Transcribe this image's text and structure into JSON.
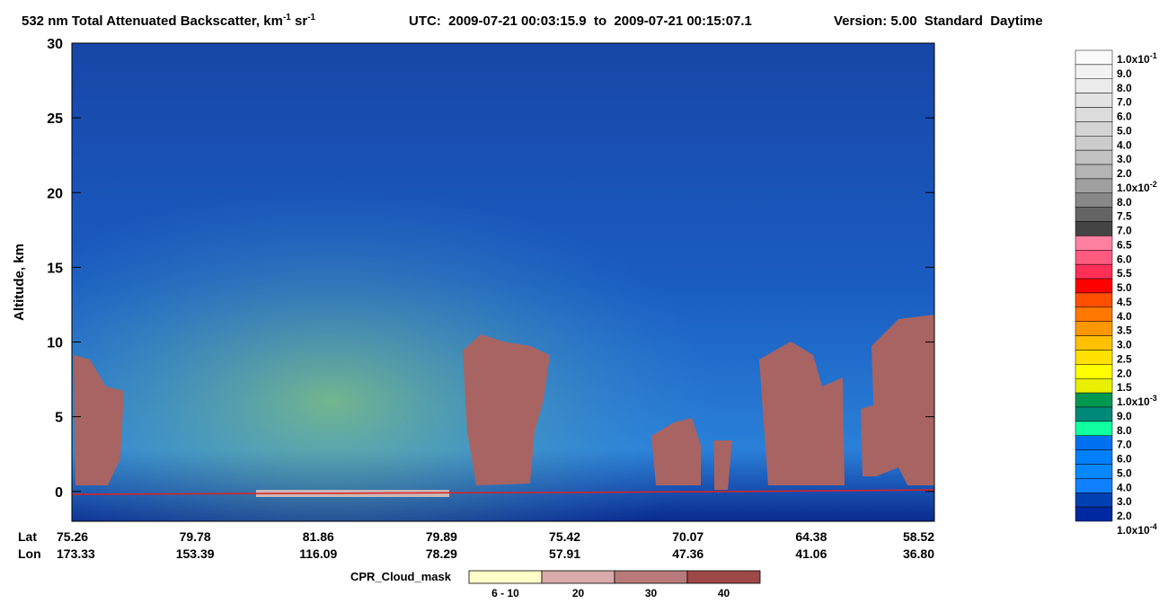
{
  "chart_data": {
    "type": "curtain",
    "title_parts": [
      "532 nm Total Attenuated Backscatter, km",
      "-1",
      " sr",
      "-1"
    ],
    "time_range": "UTC:  2009-07-21 00:03:15.9  to  2009-07-21 00:15:07.1",
    "version": "Version: 5.00  Standard  Daytime",
    "ylabel": "Altitude, km",
    "ylim": [
      -2,
      30
    ],
    "yticks": [
      0,
      5,
      10,
      15,
      20,
      25,
      30
    ],
    "lat_label": "Lat",
    "lon_label": "Lon",
    "lat": [
      "75.26",
      "79.78",
      "81.86",
      "79.89",
      "75.42",
      "70.07",
      "64.38",
      "58.52"
    ],
    "lon": [
      "173.33",
      "153.39",
      "116.09",
      "78.29",
      "57.91",
      "47.36",
      "41.06",
      "36.80"
    ],
    "colorbar": {
      "labels": [
        {
          "base": "1.0x10",
          "exp": "-1"
        },
        "9.0",
        "8.0",
        "7.0",
        "6.0",
        "5.0",
        "4.0",
        "3.0",
        "2.0",
        {
          "base": "1.0x10",
          "exp": "-2"
        },
        "8.0",
        "7.5",
        "7.0",
        "6.5",
        "6.0",
        "5.5",
        "5.0",
        "4.5",
        "4.0",
        "3.5",
        "3.0",
        "2.5",
        "2.0",
        "1.5",
        {
          "base": "1.0x10",
          "exp": "-3"
        },
        "9.0",
        "8.0",
        "7.0",
        "6.0",
        "5.0",
        "4.0",
        "3.0",
        "2.0",
        {
          "base": "1.0x10",
          "exp": "-4"
        }
      ],
      "colors": [
        "#fafafa",
        "#f2f2f2",
        "#ebebeb",
        "#e3e3e3",
        "#dcdcdc",
        "#d4d4d4",
        "#cccccc",
        "#c2c2c2",
        "#b4b4b4",
        "#a0a0a0",
        "#888888",
        "#646464",
        "#444444",
        "#ff80a0",
        "#ff5a80",
        "#ff3058",
        "#ff0000",
        "#ff5000",
        "#ff7800",
        "#ff9800",
        "#ffc000",
        "#ffe000",
        "#ffff00",
        "#e8f000",
        "#009850",
        "#008878",
        "#10ffa0",
        "#0070f0",
        "#0080ff",
        "#0888ff",
        "#1080ff",
        "#0040b0",
        "#0028a0"
      ]
    },
    "cpr": {
      "label": "CPR_Cloud_mask",
      "labels": [
        "6 - 10",
        "20",
        "30",
        "40"
      ],
      "colors": [
        "#ffffc8",
        "#d8aaaa",
        "#b87a7a",
        "#9e4848"
      ]
    }
  }
}
